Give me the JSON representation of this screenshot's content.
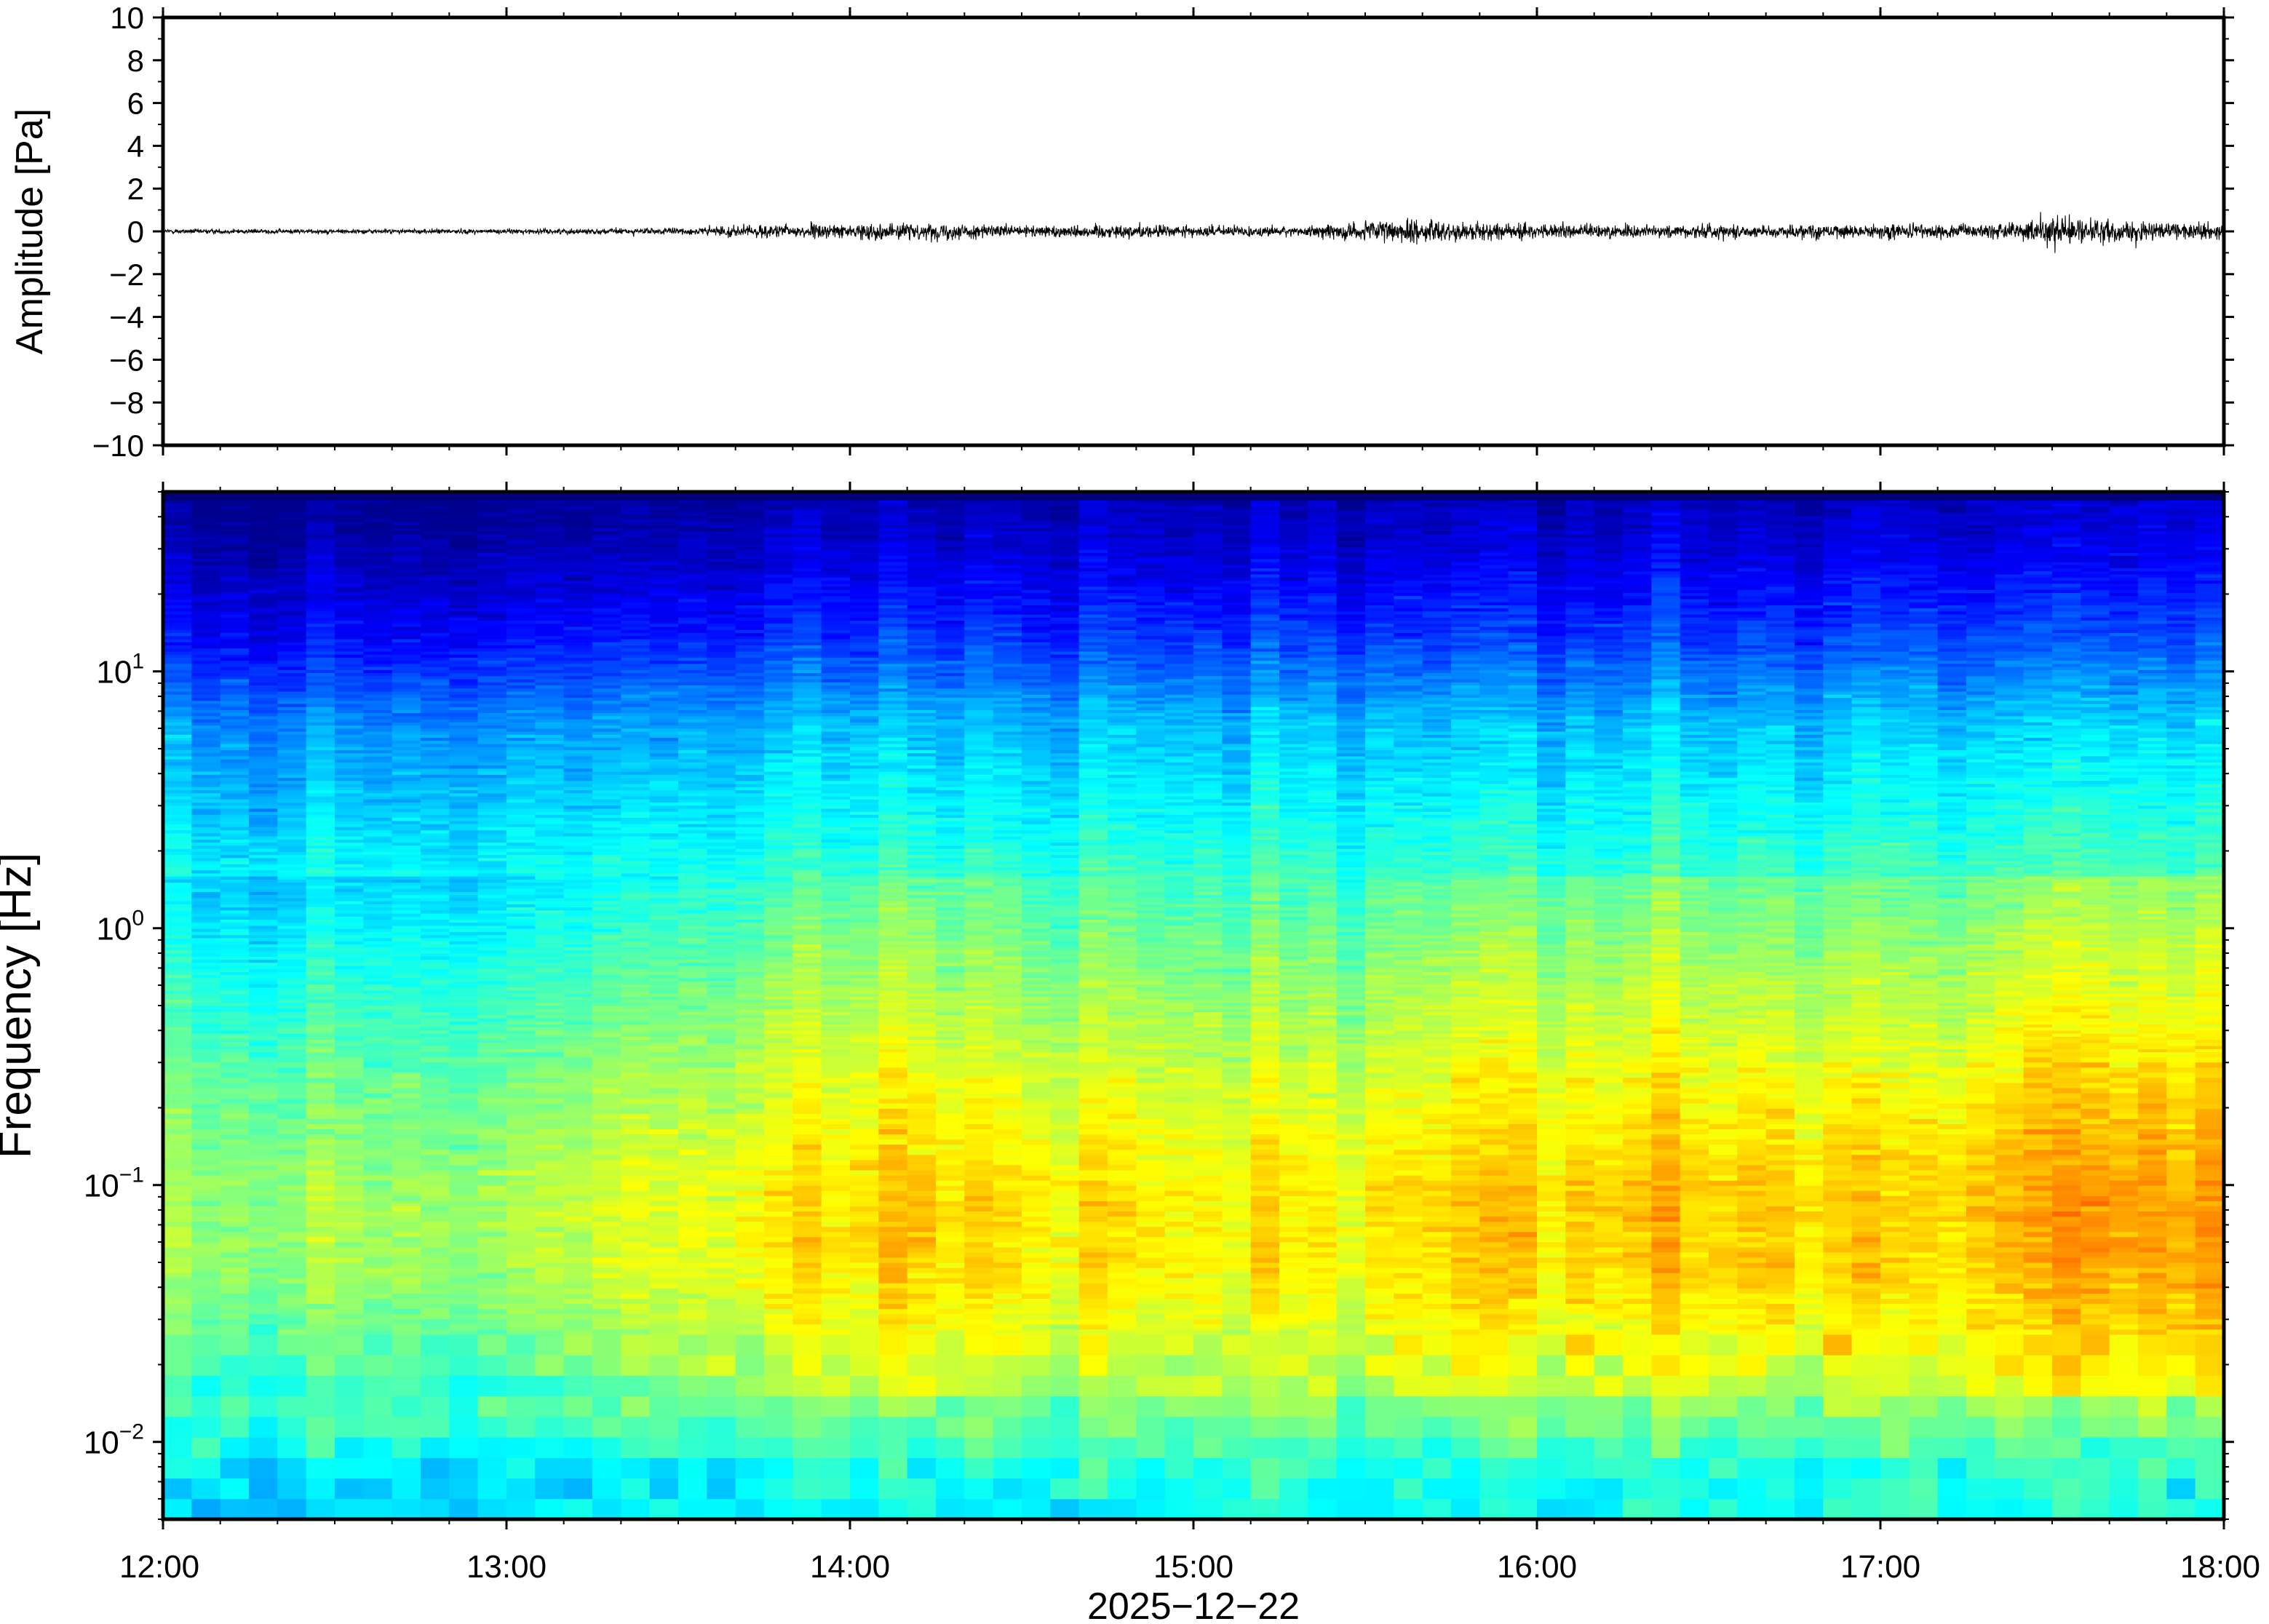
{
  "chart_data": [
    {
      "type": "line",
      "title": "",
      "ylabel": "Amplitude [Pa]",
      "ylim": [
        -10,
        10
      ],
      "yticks": [
        -10,
        -8,
        -6,
        -4,
        -2,
        0,
        2,
        4,
        6,
        8,
        10
      ],
      "ytick_labels": [
        "−10",
        "−8",
        "−6",
        "−4",
        "−2",
        "0",
        "2",
        "4",
        "6",
        "8",
        "10"
      ],
      "xlim_hours": [
        12,
        18
      ],
      "series": [
        {
          "envelope_time_hours": [
            12.0,
            12.5,
            13.0,
            13.5,
            13.8,
            14.0,
            14.2,
            14.5,
            14.8,
            15.0,
            15.3,
            15.6,
            15.8,
            16.0,
            16.3,
            16.5,
            16.8,
            17.0,
            17.2,
            17.4,
            17.5,
            17.6,
            17.8,
            18.0
          ],
          "envelope_amplitude_pa": [
            0.2,
            0.2,
            0.2,
            0.3,
            0.6,
            0.6,
            0.7,
            0.5,
            0.6,
            0.5,
            0.4,
            1.1,
            0.7,
            0.6,
            0.6,
            0.6,
            0.6,
            0.6,
            0.6,
            0.7,
            1.5,
            1.0,
            0.8,
            0.8
          ]
        }
      ],
      "grid": false,
      "legend": "none"
    },
    {
      "type": "heatmap",
      "title": "",
      "ylabel": "Frequency [Hz]",
      "xlabel": "2025−12−22",
      "yscale": "log",
      "ylim": [
        0.005,
        50
      ],
      "yticks": [
        0.01,
        0.1,
        1,
        10
      ],
      "ytick_labels": [
        {
          "base": "10",
          "exp": "−2"
        },
        {
          "base": "10",
          "exp": "−1"
        },
        {
          "base": "10",
          "exp": "0"
        },
        {
          "base": "10",
          "exp": "1"
        }
      ],
      "xlim_hours": [
        12,
        18
      ],
      "xticks": [
        "12:00",
        "13:00",
        "14:00",
        "15:00",
        "16:00",
        "17:00",
        "18:00"
      ],
      "colormap": "jet",
      "colormap_stops": [
        "#00008f",
        "#0000ff",
        "#0080ff",
        "#00ffff",
        "#80ff80",
        "#ffff00",
        "#ff8000",
        "#ff0000"
      ],
      "grid": false,
      "legend": "none"
    }
  ]
}
